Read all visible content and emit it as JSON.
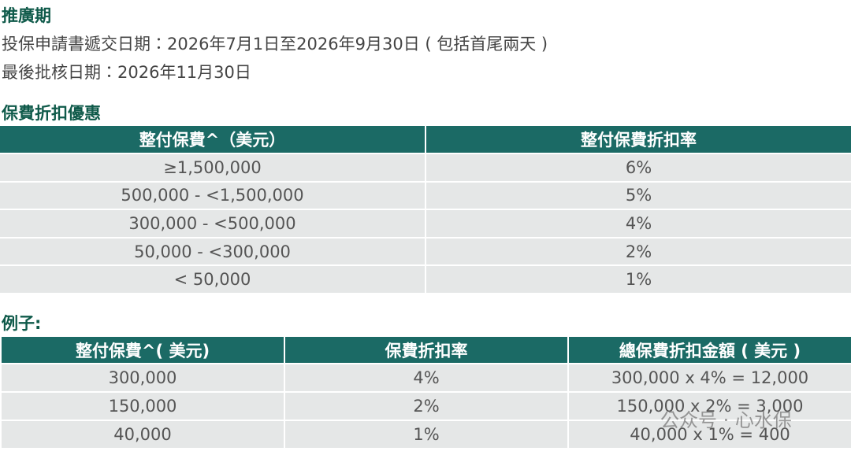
{
  "promo": {
    "title": "推廣期",
    "lines": [
      "投保申請書遞交日期：2026年7月1日至2026年9月30日 ( 包括首尾兩天 )",
      "最後批核日期：2026年11月30日"
    ]
  },
  "discount": {
    "title": "保費折扣優惠",
    "table": {
      "header": [
        "整付保費^（美元）",
        "整付保費折扣率"
      ],
      "rows": [
        [
          "≥1,500,000",
          "6%"
        ],
        [
          "500,000 - <1,500,000",
          "5%"
        ],
        [
          "300,000 - <500,000",
          "4%"
        ],
        [
          "50,000 - <300,000",
          "2%"
        ],
        [
          "< 50,000",
          "1%"
        ]
      ]
    }
  },
  "example": {
    "title": "例子:",
    "table": {
      "header": [
        "整付保費^( 美元)",
        "保費折扣率",
        "總保費折扣金額 ( 美元 )"
      ],
      "rows": [
        [
          "300,000",
          "4%",
          "300,000 x 4% = 12,000"
        ],
        [
          "150,000",
          "2%",
          "150,000 x 2% = 3,000"
        ],
        [
          "40,000",
          "1%",
          "40,000 x 1% = 400"
        ]
      ]
    }
  },
  "watermark": "公众号 · 心水保"
}
